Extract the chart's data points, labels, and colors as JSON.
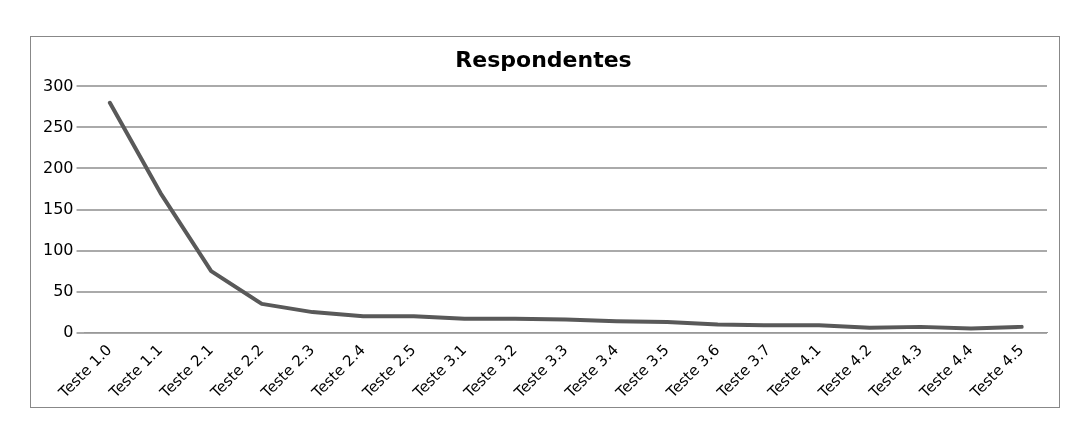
{
  "chart_data": {
    "type": "line",
    "title": "Respondentes",
    "categories": [
      "Teste 1.0",
      "Teste 1.1",
      "Teste 2.1",
      "Teste 2.2",
      "Teste 2.3",
      "Teste 2.4",
      "Teste 2.5",
      "Teste 3.1",
      "Teste 3.2",
      "Teste 3.3",
      "Teste 3.4",
      "Teste 3.5",
      "Teste 3.6",
      "Teste 3.7",
      "Teste 4.1",
      "Teste 4.2",
      "Teste 4.3",
      "Teste 4.4",
      "Teste 4.5"
    ],
    "series": [
      {
        "color": "#595959",
        "values": [
          280,
          170,
          75,
          35,
          25,
          20,
          20,
          17,
          17,
          16,
          14,
          13,
          10,
          9,
          9,
          6,
          7,
          5,
          7
        ]
      }
    ],
    "ylim": [
      0,
      300
    ],
    "yticks": [
      0,
      50,
      100,
      150,
      200,
      250,
      300
    ],
    "grid": "y",
    "legend": false,
    "marker": "none"
  }
}
